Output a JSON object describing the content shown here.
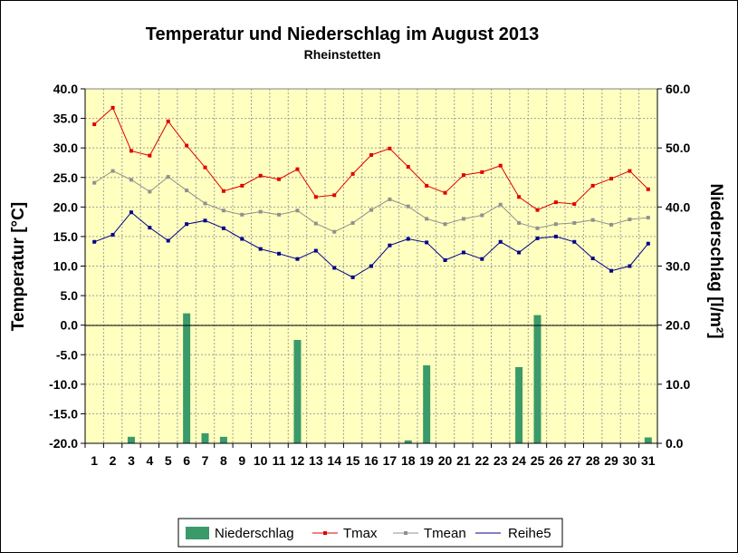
{
  "chart_data": {
    "type": "line",
    "title": "Temperatur und Niederschlag im August 2013",
    "subtitle": "Rheinstetten",
    "ylabel": "Temperatur [°C]",
    "y2label": "Niederschlag [l/m²]",
    "ylim": [
      -20,
      40
    ],
    "y2lim": [
      0,
      60
    ],
    "yticks": [
      "40.0",
      "35.0",
      "30.0",
      "25.0",
      "20.0",
      "15.0",
      "10.0",
      "5.0",
      "0.0",
      "-5.0",
      "-10.0",
      "-15.0",
      "-20.0"
    ],
    "y2ticks": [
      "60.0",
      "50.0",
      "40.0",
      "30.0",
      "20.0",
      "10.0",
      "0.0"
    ],
    "categories": [
      "1",
      "2",
      "3",
      "4",
      "5",
      "6",
      "7",
      "8",
      "9",
      "10",
      "11",
      "12",
      "13",
      "14",
      "15",
      "16",
      "17",
      "18",
      "19",
      "20",
      "21",
      "22",
      "23",
      "24",
      "25",
      "26",
      "27",
      "28",
      "29",
      "30",
      "31"
    ],
    "grid": true,
    "legend_position": "bottom",
    "series": [
      {
        "name": "Niederschlag",
        "type": "bar",
        "axis": "right",
        "color": "#3a9a6a",
        "values": [
          0,
          0,
          1.1,
          0,
          0,
          22.0,
          1.7,
          1.1,
          0,
          0,
          0,
          17.5,
          0,
          0,
          0,
          0,
          0,
          0.5,
          13.2,
          0,
          0,
          0,
          0,
          12.9,
          21.7,
          0,
          0,
          0,
          0,
          0,
          1.0
        ]
      },
      {
        "name": "Tmax",
        "type": "line",
        "axis": "left",
        "color": "#e00000",
        "values": [
          34.0,
          36.8,
          29.5,
          28.7,
          34.5,
          30.4,
          26.7,
          22.7,
          23.6,
          25.3,
          24.7,
          26.4,
          21.7,
          22.0,
          25.6,
          28.8,
          29.9,
          26.8,
          23.6,
          22.4,
          25.4,
          25.9,
          27.0,
          21.7,
          19.5,
          20.8,
          20.5,
          23.6,
          24.8,
          26.1,
          23.0
        ]
      },
      {
        "name": "Tmean",
        "type": "line",
        "axis": "left",
        "color": "#909090",
        "values": [
          24.1,
          26.1,
          24.6,
          22.6,
          25.1,
          22.8,
          20.6,
          19.4,
          18.7,
          19.2,
          18.7,
          19.4,
          17.2,
          15.8,
          17.3,
          19.5,
          21.3,
          20.1,
          18.0,
          17.1,
          18.0,
          18.6,
          20.4,
          17.3,
          16.4,
          17.1,
          17.3,
          17.8,
          17.0,
          17.9,
          18.2
        ]
      },
      {
        "name": "Reihe5",
        "type": "line",
        "axis": "left",
        "color": "#00008b",
        "values": [
          14.1,
          15.3,
          19.1,
          16.5,
          14.3,
          17.1,
          17.7,
          16.4,
          14.6,
          12.9,
          12.1,
          11.2,
          12.6,
          9.7,
          8.1,
          10.0,
          13.5,
          14.6,
          14.0,
          11.0,
          12.3,
          11.2,
          14.1,
          12.3,
          14.7,
          15.0,
          14.1,
          11.3,
          9.2,
          10.0,
          13.8
        ]
      }
    ]
  }
}
